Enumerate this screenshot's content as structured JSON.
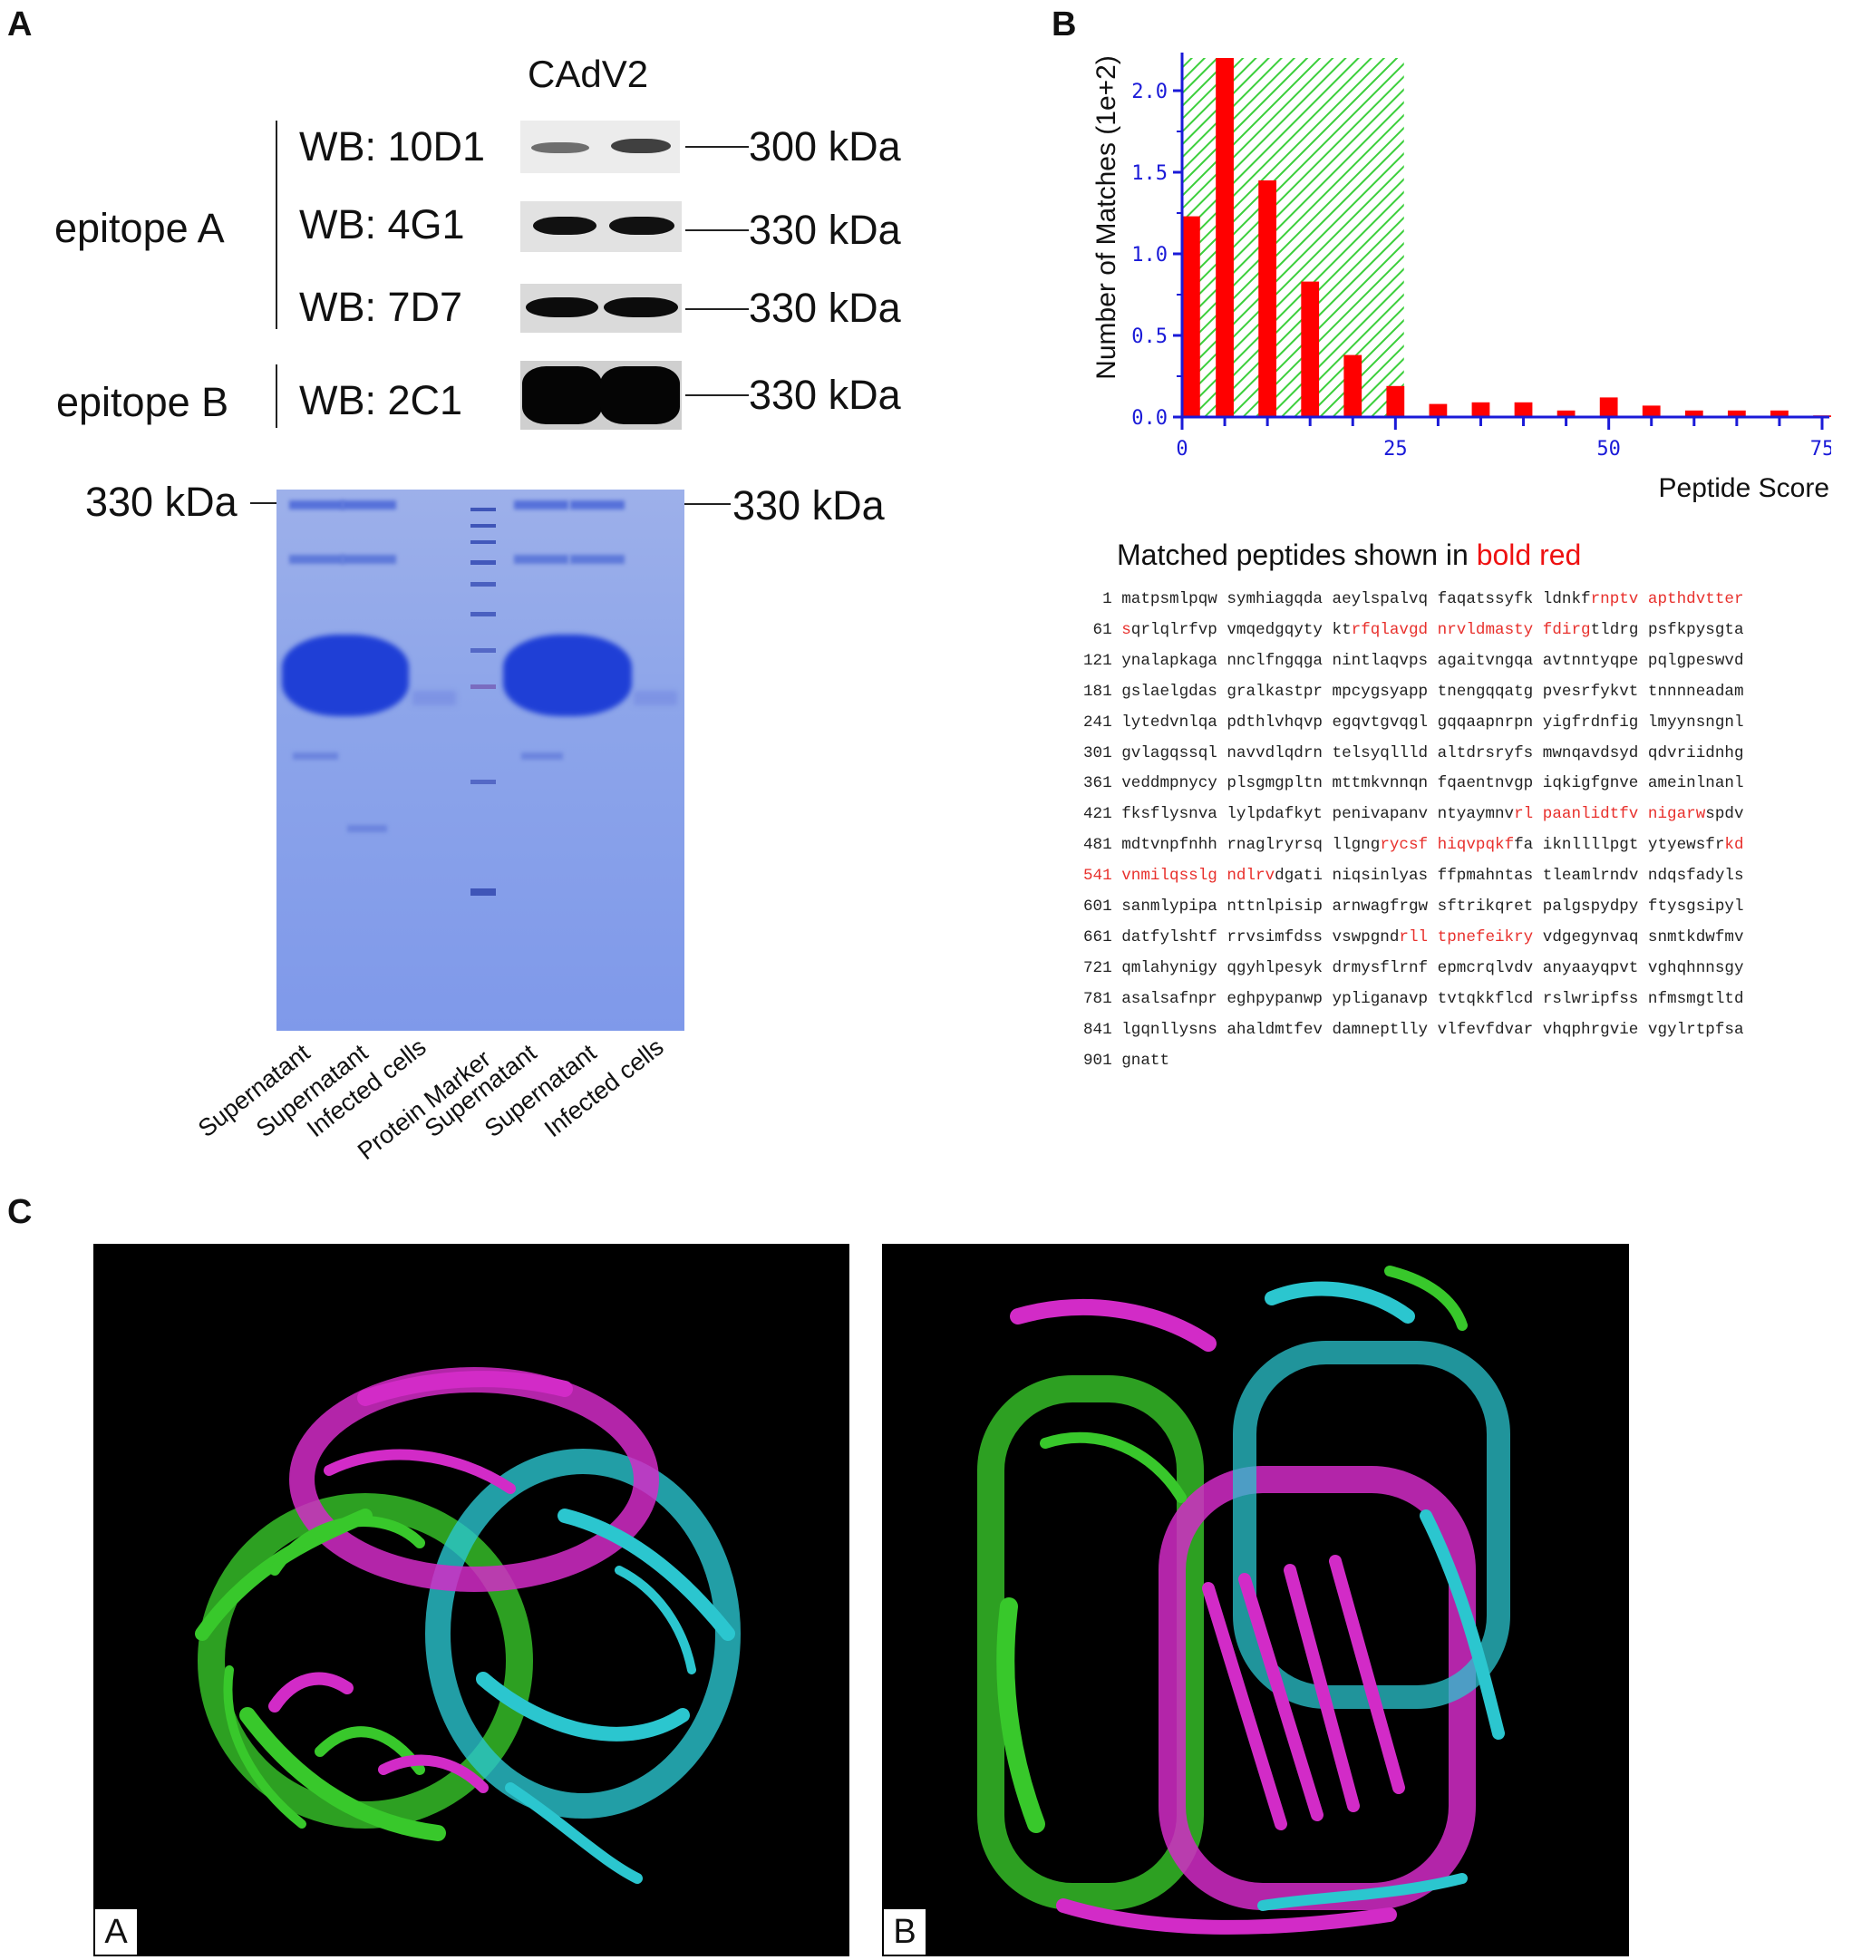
{
  "panel_labels": {
    "a": "A",
    "b": "B",
    "c": "C"
  },
  "panel_a": {
    "virus": "CAdV2",
    "epitope_a": "epitope A",
    "epitope_b": "epitope B",
    "blots": [
      {
        "antibody": "WB: 10D1",
        "mw": "300 kDa"
      },
      {
        "antibody": "WB: 4G1",
        "mw": "330 kDa"
      },
      {
        "antibody": "WB: 7D7",
        "mw": "330 kDa"
      },
      {
        "antibody": "WB: 2C1",
        "mw": "330 kDa"
      }
    ],
    "gel_left_mw": "330 kDa",
    "gel_right_mw": "330 kDa",
    "lanes": [
      "Supernatant",
      "Supernatant",
      "Infected cells",
      "Protein Marker",
      "Supernatant",
      "Supernatant",
      "Infected cells"
    ],
    "gel_color": "#7f99ea",
    "band_color": "#1f3fd6"
  },
  "chart_data": {
    "type": "bar",
    "ylabel": "Number of Matches (1e+2)",
    "xlabel": "Peptide Score",
    "xlim": [
      0,
      75
    ],
    "ylim": [
      0,
      2.2
    ],
    "x_ticks": [
      "0",
      "25",
      "50",
      "75"
    ],
    "y_ticks": [
      "0.0",
      "0.5",
      "1.0",
      "1.5",
      "2.0"
    ],
    "threshold_score": 26,
    "x": [
      0,
      5,
      10,
      15,
      20,
      25,
      30,
      35,
      40,
      45,
      50,
      55,
      60,
      65,
      70,
      75
    ],
    "values": [
      1.23,
      2.2,
      1.45,
      0.83,
      0.38,
      0.19,
      0.08,
      0.09,
      0.09,
      0.04,
      0.12,
      0.07,
      0.04,
      0.04,
      0.04,
      0.01
    ],
    "bar_color": "#ff0000",
    "shade_color": "#3ccf3c",
    "axis_color": "#1a1ad8"
  },
  "matched": {
    "title_prefix": "Matched peptides shown in ",
    "title_red": "bold red",
    "lines": [
      [
        {
          "t": "  1 matpsmlpqw symhiagqda aeylspalvq faqatssyfk ldnkf"
        },
        {
          "t": "rnptv apthdvtter",
          "h": true
        }
      ],
      [
        {
          "t": " 61 "
        },
        {
          "t": "s",
          "h": true
        },
        {
          "t": "qrlqlrfvp vmqedgqyty kt"
        },
        {
          "t": "rfqlavgd nrvldmasty fdirg",
          "h": true
        },
        {
          "t": "tldrg psfkpysgta"
        }
      ],
      [
        {
          "t": "121 ynalapkaga nnclfngqga nintlaqvps agaitvngqa avtnntyqpe pqlgpeswvd"
        }
      ],
      [
        {
          "t": "181 gslaelgdas gralkastpr mpcygsyapp tnengqqatg pvesrfykvt tnnnneadam"
        }
      ],
      [
        {
          "t": "241 lytedvnlqa pdthlvhqvp egqvtgvqgl gqqaapnrpn yigfrdnfig lmyynsngnl"
        }
      ],
      [
        {
          "t": "301 gvlagqssql navvdlqdrn telsyqllld altdrsryfs mwnqavdsyd qdvriidnhg"
        }
      ],
      [
        {
          "t": "361 veddmpnycy plsgmgpltn mttmkvnnqn fqaentnvgp iqkigfgnve ameinlnanl"
        }
      ],
      [
        {
          "t": "421 fksflysnva lylpdafkyt penivapanv ntyaymnv"
        },
        {
          "t": "rl paanlidtfv nigarw",
          "h": true
        },
        {
          "t": "spdv"
        }
      ],
      [
        {
          "t": "481 mdtvnpfnhh rnaglryrsq llgng"
        },
        {
          "t": "rycsf hiqvpqkf",
          "h": true
        },
        {
          "t": "fa iknllllpgt ytyewsfr"
        },
        {
          "t": "kd",
          "h": true
        }
      ],
      [
        {
          "t": "541 vnmilqsslg ndlrv",
          "h": true
        },
        {
          "t": "dgati niqsinlyas ffpmahntas tleamlrndv ndqsfadyls"
        }
      ],
      [
        {
          "t": "601 sanmlypipa nttnlpisip arnwagfrgw sftrikqret palgspydpy ftysgsipyl"
        }
      ],
      [
        {
          "t": "661 datfylshtf rrvsimfdss vswpgnd"
        },
        {
          "t": "rll tpnefeikry",
          "h": true
        },
        {
          "t": " vdgegynvaq snmtkdwfmv"
        }
      ],
      [
        {
          "t": "721 qmlahynigy qgyhlpesyk drmysflrnf epmcrqlvdv anyaayqpvt vghqhnnsgy"
        }
      ],
      [
        {
          "t": "781 asalsafnpr eghpypanwp ypliganavp tvtqkkflcd rslwripfss nfmsmgtltd"
        }
      ],
      [
        {
          "t": "841 lgqnllysns ahaldmtfev damneptlly vlfevfdvar vhqphrgvie vgylrtpfsa"
        }
      ],
      [
        {
          "t": "901 gnatt"
        }
      ]
    ]
  },
  "panel_c": {
    "view_a": "A",
    "view_b": "B",
    "colors": {
      "chain1": "#d22bc7",
      "chain2": "#2bc6cf",
      "chain3": "#38c82b"
    }
  }
}
